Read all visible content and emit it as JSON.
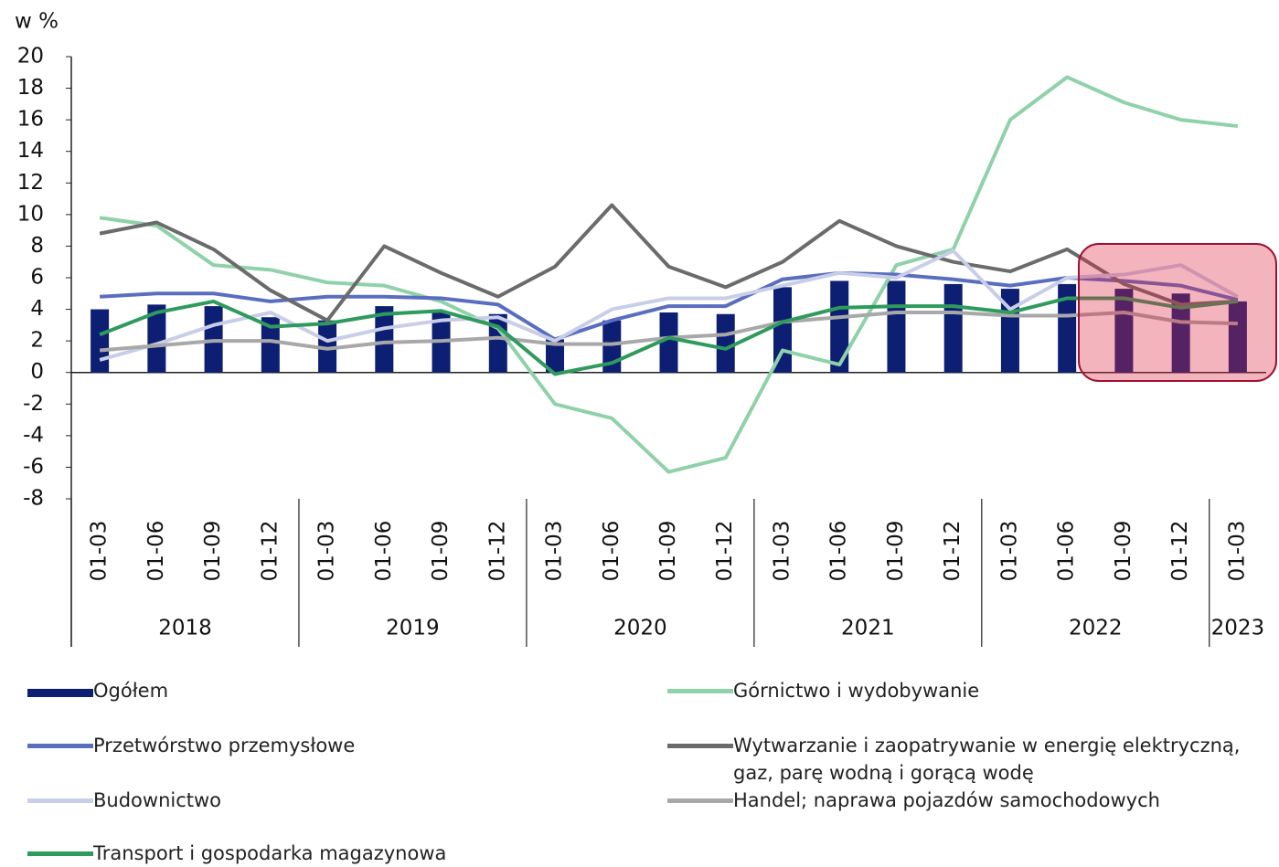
{
  "chart_data": {
    "type": "bar",
    "y_axis_label": "w %",
    "categories": [
      "01-03",
      "01-06",
      "01-09",
      "01-12",
      "01-03",
      "01-06",
      "01-09",
      "01-12",
      "01-03",
      "01-06",
      "01-09",
      "01-12",
      "01-03",
      "01-06",
      "01-09",
      "01-12",
      "01-03",
      "01-06",
      "01-09",
      "01-12",
      "01-03"
    ],
    "x_groups": [
      "2018",
      null,
      null,
      null,
      "2019",
      null,
      null,
      null,
      "2020",
      null,
      null,
      null,
      "2021",
      null,
      null,
      null,
      "2022",
      null,
      null,
      null,
      "2023"
    ],
    "ylim": [
      -8,
      20
    ],
    "yticks": [
      -8,
      -6,
      -4,
      -2,
      0,
      2,
      4,
      6,
      8,
      10,
      12,
      14,
      16,
      18,
      20
    ],
    "grid": false,
    "series": [
      {
        "name": "Ogółem",
        "type": "bar",
        "color": "#0d1f73",
        "values": [
          4.0,
          4.3,
          4.2,
          3.5,
          3.3,
          4.2,
          3.8,
          3.7,
          2.1,
          3.3,
          3.8,
          3.7,
          5.4,
          5.8,
          5.8,
          5.6,
          5.3,
          5.6,
          5.3,
          5.0,
          4.5
        ]
      },
      {
        "name": "Górnictwo i wydobywanie",
        "type": "line",
        "color": "#8fd1a8",
        "values": [
          9.8,
          9.3,
          6.8,
          6.5,
          5.7,
          5.5,
          4.5,
          2.8,
          -2.0,
          -2.9,
          -6.3,
          -5.4,
          1.4,
          0.5,
          6.8,
          7.8,
          16.0,
          18.7,
          17.1,
          16.0,
          15.6
        ]
      },
      {
        "name": "Przetwórstwo przemysłowe",
        "type": "line",
        "color": "#5a6ec0",
        "values": [
          4.8,
          5.0,
          5.0,
          4.5,
          4.8,
          4.8,
          4.7,
          4.3,
          2.1,
          3.3,
          4.2,
          4.2,
          5.9,
          6.3,
          6.2,
          5.9,
          5.5,
          6.0,
          5.8,
          5.5,
          4.6
        ]
      },
      {
        "name": "Wytwarzanie i zaopatrywanie w energię elektryczną, gaz, parę wodną i gorącą wodę",
        "type": "line",
        "color": "#6b6b6b",
        "values": [
          8.8,
          9.5,
          7.8,
          5.2,
          3.3,
          8.0,
          6.3,
          4.8,
          6.7,
          10.6,
          6.7,
          5.4,
          7.0,
          9.6,
          8.0,
          7.0,
          6.4,
          7.8,
          5.6,
          4.3,
          4.5
        ]
      },
      {
        "name": "Budownictwo",
        "type": "line",
        "color": "#c8cde8",
        "values": [
          0.8,
          1.8,
          3.0,
          3.8,
          2.0,
          2.8,
          3.3,
          3.5,
          2.0,
          4.0,
          4.7,
          4.7,
          5.5,
          6.3,
          6.0,
          7.7,
          4.0,
          6.0,
          6.2,
          6.8,
          4.8
        ]
      },
      {
        "name": "Handel; naprawa pojazdów samochodowych",
        "type": "line",
        "color": "#a8a8a8",
        "values": [
          1.4,
          1.7,
          2.0,
          2.0,
          1.5,
          1.9,
          2.0,
          2.2,
          1.8,
          1.8,
          2.2,
          2.4,
          3.2,
          3.5,
          3.8,
          3.8,
          3.6,
          3.6,
          3.8,
          3.2,
          3.1
        ]
      },
      {
        "name": "Transport i gospodarka magazynowa",
        "type": "line",
        "color": "#2e9a5c",
        "values": [
          2.4,
          3.8,
          4.5,
          2.9,
          3.1,
          3.7,
          3.9,
          2.9,
          -0.1,
          0.6,
          2.2,
          1.5,
          3.2,
          4.1,
          4.2,
          4.2,
          3.8,
          4.7,
          4.7,
          4.1,
          4.5
        ]
      }
    ]
  }
}
